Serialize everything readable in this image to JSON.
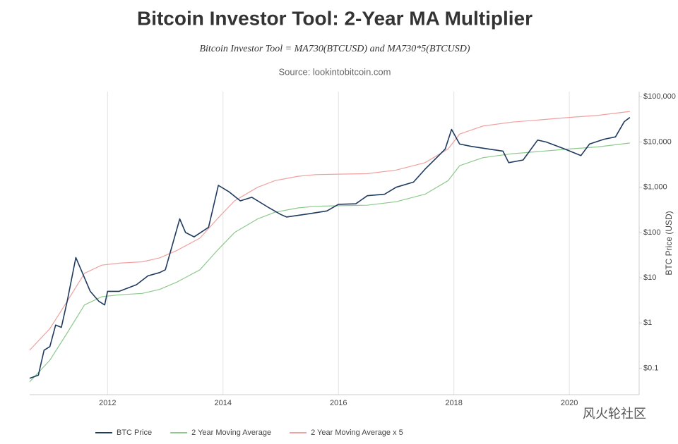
{
  "chart_data": {
    "type": "line",
    "title": "Bitcoin Investor Tool: 2-Year MA Multiplier",
    "subtitle": "Bitcoin Investor Tool = MA730(BTCUSD) and MA730*5(BTCUSD)",
    "source": "Source: lookintobitcoin.com",
    "y_label": "BTC Price (USD)",
    "watermark": "风火轮社区",
    "log_y": true,
    "xlim": [
      2010.65,
      2021.21
    ],
    "xticks": [
      2012,
      2014,
      2016,
      2018,
      2020
    ],
    "ylim": [
      0.026,
      130000
    ],
    "yticks": [
      {
        "value": 0.1,
        "label": "$0.1"
      },
      {
        "value": 1,
        "label": "$1"
      },
      {
        "value": 10,
        "label": "$10"
      },
      {
        "value": 100,
        "label": "$100"
      },
      {
        "value": 1000,
        "label": "$1,000"
      },
      {
        "value": 10000,
        "label": "$10,000"
      },
      {
        "value": 100000,
        "label": "$100,000"
      }
    ],
    "series": [
      {
        "name": "BTC Price",
        "color": "#1f3a5f",
        "x": [
          2010.65,
          2010.8,
          2010.9,
          2011.0,
          2011.1,
          2011.2,
          2011.3,
          2011.45,
          2011.55,
          2011.7,
          2011.85,
          2011.95,
          2012.0,
          2012.2,
          2012.5,
          2012.7,
          2012.9,
          2013.0,
          2013.25,
          2013.35,
          2013.5,
          2013.75,
          2013.92,
          2014.1,
          2014.3,
          2014.5,
          2014.8,
          2015.0,
          2015.1,
          2015.5,
          2015.8,
          2016.0,
          2016.3,
          2016.5,
          2016.8,
          2017.0,
          2017.3,
          2017.5,
          2017.7,
          2017.85,
          2017.96,
          2018.1,
          2018.3,
          2018.6,
          2018.85,
          2018.95,
          2019.2,
          2019.45,
          2019.6,
          2019.9,
          2020.2,
          2020.35,
          2020.6,
          2020.8,
          2020.95,
          2021.05
        ],
        "values": [
          0.06,
          0.07,
          0.25,
          0.3,
          0.9,
          0.8,
          3,
          28,
          14,
          5,
          3,
          2.5,
          5,
          5,
          7,
          11,
          13,
          15,
          200,
          100,
          80,
          130,
          1100,
          800,
          500,
          600,
          350,
          250,
          220,
          260,
          300,
          420,
          430,
          650,
          700,
          1000,
          1300,
          2500,
          4500,
          7000,
          19000,
          9000,
          8000,
          7000,
          6300,
          3500,
          4000,
          11000,
          10000,
          7200,
          5000,
          9000,
          11500,
          13000,
          28000,
          35000
        ]
      },
      {
        "name": "2 Year Moving Average",
        "color": "#8cc98c",
        "x": [
          2010.65,
          2011.0,
          2011.3,
          2011.6,
          2011.9,
          2012.2,
          2012.6,
          2012.9,
          2013.2,
          2013.6,
          2013.9,
          2014.2,
          2014.6,
          2014.9,
          2015.3,
          2015.6,
          2016.0,
          2016.5,
          2017.0,
          2017.5,
          2017.9,
          2018.1,
          2018.5,
          2019.0,
          2019.5,
          2020.0,
          2020.5,
          2020.9,
          2021.05
        ],
        "values": [
          0.05,
          0.15,
          0.6,
          2.5,
          3.8,
          4.2,
          4.5,
          5.5,
          8,
          15,
          40,
          100,
          200,
          280,
          350,
          380,
          390,
          400,
          480,
          700,
          1400,
          3000,
          4500,
          5500,
          6200,
          7000,
          7800,
          9000,
          9500
        ]
      },
      {
        "name": "2 Year Moving Average x 5",
        "color": "#f0a0a0",
        "x": [
          2010.65,
          2011.0,
          2011.3,
          2011.6,
          2011.9,
          2012.2,
          2012.6,
          2012.9,
          2013.2,
          2013.6,
          2013.9,
          2014.2,
          2014.6,
          2014.9,
          2015.3,
          2015.6,
          2016.0,
          2016.5,
          2017.0,
          2017.5,
          2017.9,
          2018.1,
          2018.5,
          2019.0,
          2019.5,
          2020.0,
          2020.5,
          2020.9,
          2021.05
        ],
        "values": [
          0.25,
          0.75,
          3,
          12.5,
          19,
          21,
          22.5,
          27.5,
          40,
          75,
          200,
          500,
          1000,
          1400,
          1750,
          1900,
          1950,
          2000,
          2400,
          3500,
          7000,
          15000,
          22500,
          27500,
          31000,
          35000,
          39000,
          45000,
          47500
        ]
      }
    ]
  }
}
